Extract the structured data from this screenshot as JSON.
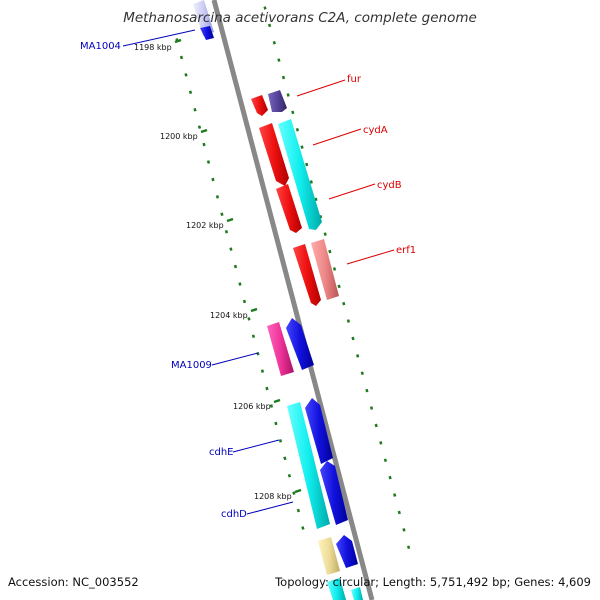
{
  "title": "Methanosarcina acetivorans C2A, complete genome",
  "footer": {
    "accession": "Accession: NC_003552",
    "stats": "Topology: circular; Length: 5,751,492 bp; Genes: 4,609"
  },
  "ticks": [
    "1198 kbp",
    "1200 kbp",
    "1202 kbp",
    "1204 kbp",
    "1206 kbp",
    "1208 kbp"
  ],
  "gene_labels": [
    {
      "text": "MA1004",
      "color": "#0000bb"
    },
    {
      "text": "fur",
      "color": "#dd0000"
    },
    {
      "text": "cydA",
      "color": "#dd0000"
    },
    {
      "text": "cydB",
      "color": "#dd0000"
    },
    {
      "text": "erf1",
      "color": "#dd0000"
    },
    {
      "text": "MA1009",
      "color": "#0000bb"
    },
    {
      "text": "cdhE",
      "color": "#0000bb"
    },
    {
      "text": "cdhD",
      "color": "#0000bb"
    }
  ],
  "colors": {
    "backbone": "#888888",
    "tick": "#1e7a1e",
    "red": "#ee1111",
    "cyan": "#11eeee",
    "blue": "#1111dd",
    "pink": "#ee3399",
    "salmon": "#ee8888",
    "navy": "#554499",
    "pale_yellow": "#eedd99"
  }
}
